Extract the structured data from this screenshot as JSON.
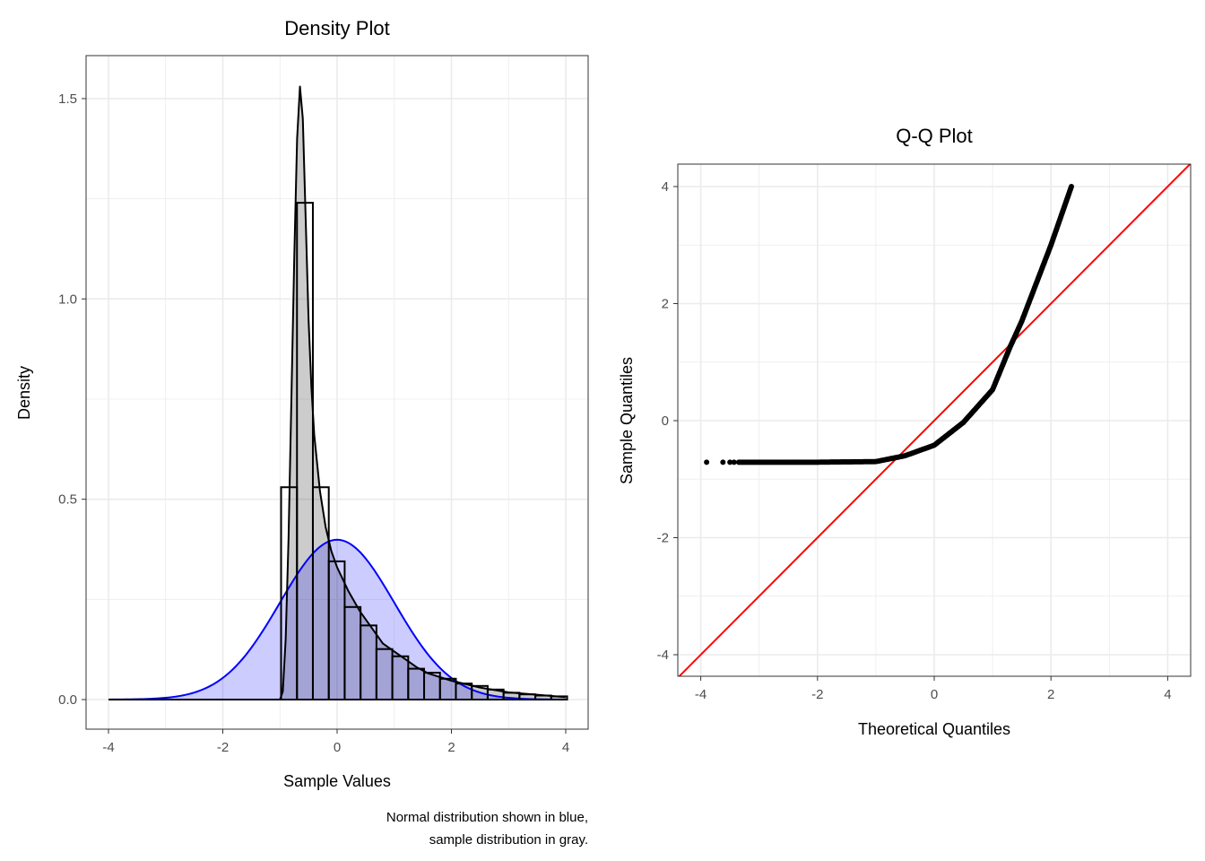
{
  "chart_data": [
    {
      "type": "histogram+density",
      "title": "Density Plot",
      "xlabel": "Sample Values",
      "ylabel": "Density",
      "caption": [
        "Normal distribution shown in blue,",
        "sample distribution in gray."
      ],
      "xlim": [
        -4.4,
        4.4
      ],
      "ylim": [
        -0.08,
        1.61
      ],
      "xticks": [
        -4,
        -2,
        0,
        2,
        4
      ],
      "xtick_labels": [
        "-4",
        "-2",
        "0",
        "2",
        "4"
      ],
      "yticks": [
        0,
        0.5,
        1,
        1.5
      ],
      "ytick_labels": [
        "0.0",
        "0.5",
        "1.0",
        "1.5"
      ],
      "grid": true,
      "histogram": {
        "bin_start": -0.98,
        "bin_width": 0.278,
        "values": [
          0.53,
          1.24,
          0.53,
          0.345,
          0.231,
          0.185,
          0.126,
          0.108,
          0.077,
          0.067,
          0.052,
          0.04,
          0.034,
          0.025,
          0.017,
          0.013,
          0.01,
          0.008
        ]
      },
      "sample_density": {
        "color": "#000000",
        "fill": "#cccccc",
        "x": [
          -4,
          -1.0,
          -0.95,
          -0.9,
          -0.85,
          -0.8,
          -0.75,
          -0.7,
          -0.65,
          -0.6,
          -0.55,
          -0.5,
          -0.45,
          -0.4,
          -0.3,
          -0.2,
          -0.1,
          0,
          0.2,
          0.4,
          0.6,
          0.8,
          1.0,
          1.2,
          1.4,
          1.6,
          2.0,
          2.5,
          3.0,
          3.5,
          4.0
        ],
        "y": [
          0,
          0,
          0.02,
          0.15,
          0.4,
          0.75,
          1.1,
          1.4,
          1.53,
          1.45,
          1.2,
          0.95,
          0.78,
          0.66,
          0.52,
          0.43,
          0.37,
          0.33,
          0.27,
          0.22,
          0.18,
          0.14,
          0.12,
          0.1,
          0.08,
          0.065,
          0.047,
          0.03,
          0.018,
          0.012,
          0.006
        ]
      },
      "normal_density": {
        "mean": 0,
        "sd": 1,
        "color": "#0000ff",
        "fill": "#ccccff",
        "range": [
          -4,
          4
        ]
      }
    },
    {
      "type": "scatter",
      "title": "Q-Q Plot",
      "xlabel": "Theoretical Quantiles",
      "ylabel": "Sample Quantiles",
      "xlim": [
        -4.39,
        4.39
      ],
      "ylim": [
        -4.39,
        4.39
      ],
      "xticks": [
        -4,
        -2,
        0,
        2,
        4
      ],
      "xtick_labels": [
        "-4",
        "-2",
        "0",
        "2",
        "4"
      ],
      "yticks": [
        -4,
        -2,
        0,
        2,
        4
      ],
      "ytick_labels": [
        "-4",
        "-2",
        "0",
        "2",
        "4"
      ],
      "grid": true,
      "reference_line": {
        "slope": 1,
        "intercept": 0,
        "color": "#ff0000"
      },
      "outlier_points": {
        "x": [
          -3.9,
          -3.62,
          -3.5,
          -3.43
        ],
        "y": [
          -0.71,
          -0.71,
          -0.71,
          -0.71
        ]
      },
      "quantile_curve": {
        "x": [
          -3.35,
          -2,
          -1,
          -0.5,
          0,
          0.5,
          1.0,
          1.3,
          1.5,
          2.0,
          2.35
        ],
        "y": [
          -0.71,
          -0.71,
          -0.7,
          -0.6,
          -0.42,
          -0.03,
          0.53,
          1.26,
          1.7,
          3.0,
          4.0
        ]
      }
    }
  ]
}
